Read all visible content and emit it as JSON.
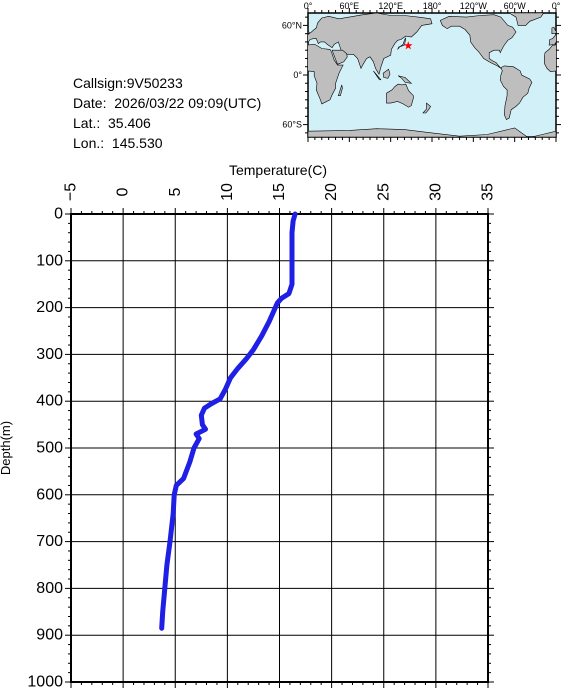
{
  "info": {
    "callsign": "Callsign:9V50233",
    "date": "Date:  2026/03/22 09:09(UTC)",
    "lat": "Lat.:  35.406",
    "lon": "Lon.:  145.530"
  },
  "map": {
    "lon_labels": [
      "0°",
      "60°E",
      "120°E",
      "180°",
      "120°W",
      "60°W",
      "0°"
    ],
    "lat_labels": [
      "60°N",
      "0°",
      "60°S"
    ],
    "marker": {
      "lat": 35.406,
      "lon": 145.53
    },
    "colors": {
      "ocean": "#d2f0f8",
      "land": "#bebebe",
      "marker": "#ff0000"
    }
  },
  "chart_data": {
    "type": "line",
    "xlabel": "Temperature(C)",
    "ylabel": "Depth(m)",
    "xlim": [
      -5,
      35
    ],
    "ylim": [
      0,
      1000
    ],
    "x_ticks": [
      -5,
      0,
      5,
      10,
      15,
      20,
      25,
      30,
      35
    ],
    "y_ticks": [
      0,
      100,
      200,
      300,
      400,
      500,
      600,
      700,
      800,
      900,
      1000
    ],
    "line_color": "#1f1fe6",
    "series": [
      {
        "points": [
          [
            16.5,
            0
          ],
          [
            16.3,
            15
          ],
          [
            16.2,
            40
          ],
          [
            16.2,
            80
          ],
          [
            16.2,
            120
          ],
          [
            16.2,
            150
          ],
          [
            15.9,
            170
          ],
          [
            15.2,
            180
          ],
          [
            14.8,
            190
          ],
          [
            14.5,
            205
          ],
          [
            14.0,
            230
          ],
          [
            13.3,
            260
          ],
          [
            12.5,
            290
          ],
          [
            11.8,
            310
          ],
          [
            11.0,
            330
          ],
          [
            10.3,
            350
          ],
          [
            9.8,
            375
          ],
          [
            9.3,
            395
          ],
          [
            8.5,
            405
          ],
          [
            7.8,
            415
          ],
          [
            7.5,
            430
          ],
          [
            7.6,
            450
          ],
          [
            7.9,
            460
          ],
          [
            7.0,
            470
          ],
          [
            7.3,
            480
          ],
          [
            6.8,
            500
          ],
          [
            6.4,
            530
          ],
          [
            5.8,
            565
          ],
          [
            5.1,
            580
          ],
          [
            4.9,
            600
          ],
          [
            4.8,
            640
          ],
          [
            4.5,
            700
          ],
          [
            4.2,
            750
          ],
          [
            4.0,
            800
          ],
          [
            3.8,
            850
          ],
          [
            3.7,
            885
          ]
        ]
      }
    ]
  }
}
